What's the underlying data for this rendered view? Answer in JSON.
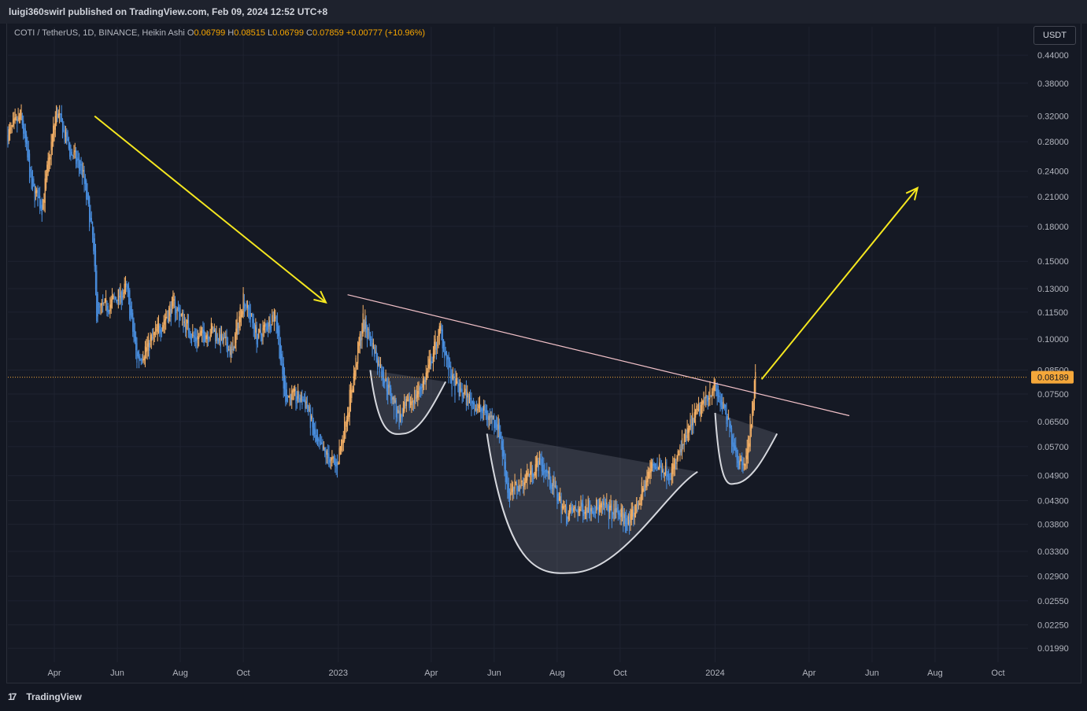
{
  "header": {
    "published": "luigi360swirl published on TradingView.com, Feb 09, 2024 12:52 UTC+8"
  },
  "legend": {
    "symbol": "COTI / TetherUS, 1D, BINANCE, Heikin Ashi",
    "open_label": "O",
    "open": "0.06799",
    "high_label": "H",
    "high": "0.08515",
    "low_label": "L",
    "low": "0.06799",
    "close_label": "C",
    "close": "0.07859",
    "change": "+0.00777 (+10.96%)"
  },
  "currency_button": "USDT",
  "footer": {
    "brand": "TradingView",
    "brand_icon": "tradingview-logo-icon"
  },
  "colors": {
    "up": "#f7b267",
    "down": "#4a90e2",
    "trendline": "#f3c2c9",
    "arrow": "#f5e71f",
    "pattern_stroke": "#d6d8de",
    "price_label_bg": "#f5a73a"
  },
  "chart_data": {
    "type": "candlestick",
    "scale": "log",
    "ylim": [
      0.0185,
      0.47
    ],
    "x_range": [
      "2022-02-15",
      "2024-10-30"
    ],
    "y_ticks": [
      "0.44000",
      "0.38000",
      "0.32000",
      "0.28000",
      "0.24000",
      "0.21000",
      "0.18000",
      "0.15000",
      "0.13000",
      "0.11500",
      "0.10000",
      "0.08500",
      "0.07500",
      "0.06500",
      "0.05700",
      "0.04900",
      "0.04300",
      "0.03800",
      "0.03300",
      "0.02900",
      "0.02550",
      "0.02250",
      "0.01990"
    ],
    "x_ticks": [
      {
        "label": "Apr",
        "date": "2022-04-01"
      },
      {
        "label": "Jun",
        "date": "2022-06-01"
      },
      {
        "label": "Aug",
        "date": "2022-08-01"
      },
      {
        "label": "Oct",
        "date": "2022-10-01"
      },
      {
        "label": "2023",
        "date": "2023-01-01"
      },
      {
        "label": "Apr",
        "date": "2023-04-01"
      },
      {
        "label": "Jun",
        "date": "2023-06-01"
      },
      {
        "label": "Aug",
        "date": "2023-08-01"
      },
      {
        "label": "Oct",
        "date": "2023-10-01"
      },
      {
        "label": "2024",
        "date": "2024-01-01"
      },
      {
        "label": "Apr",
        "date": "2024-04-01"
      },
      {
        "label": "Jun",
        "date": "2024-06-01"
      },
      {
        "label": "Aug",
        "date": "2024-08-01"
      },
      {
        "label": "Oct",
        "date": "2024-10-01"
      }
    ],
    "current_price": "0.08189",
    "price_path": [
      [
        "2022-02-15",
        0.29
      ],
      [
        "2022-02-28",
        0.32
      ],
      [
        "2022-03-10",
        0.22
      ],
      [
        "2022-03-20",
        0.2
      ],
      [
        "2022-04-03",
        0.33
      ],
      [
        "2022-04-15",
        0.27
      ],
      [
        "2022-04-28",
        0.24
      ],
      [
        "2022-05-08",
        0.17
      ],
      [
        "2022-05-12",
        0.115
      ],
      [
        "2022-05-25",
        0.12
      ],
      [
        "2022-06-10",
        0.13
      ],
      [
        "2022-06-20",
        0.09
      ],
      [
        "2022-07-05",
        0.1
      ],
      [
        "2022-07-25",
        0.12
      ],
      [
        "2022-08-15",
        0.1
      ],
      [
        "2022-09-01",
        0.105
      ],
      [
        "2022-09-20",
        0.093
      ],
      [
        "2022-10-01",
        0.125
      ],
      [
        "2022-10-15",
        0.1
      ],
      [
        "2022-11-01",
        0.115
      ],
      [
        "2022-11-10",
        0.075
      ],
      [
        "2022-12-01",
        0.072
      ],
      [
        "2022-12-10",
        0.058
      ],
      [
        "2022-12-30",
        0.051
      ],
      [
        "2023-01-15",
        0.08
      ],
      [
        "2023-01-25",
        0.11
      ],
      [
        "2023-02-10",
        0.087
      ],
      [
        "2023-03-01",
        0.066
      ],
      [
        "2023-03-25",
        0.08
      ],
      [
        "2023-04-10",
        0.105
      ],
      [
        "2023-04-20",
        0.08
      ],
      [
        "2023-05-15",
        0.07
      ],
      [
        "2023-06-05",
        0.064
      ],
      [
        "2023-06-15",
        0.044
      ],
      [
        "2023-07-15",
        0.053
      ],
      [
        "2023-08-10",
        0.04
      ],
      [
        "2023-09-01",
        0.042
      ],
      [
        "2023-10-01",
        0.04
      ],
      [
        "2023-10-10",
        0.038
      ],
      [
        "2023-11-01",
        0.052
      ],
      [
        "2023-11-20",
        0.05
      ],
      [
        "2023-12-10",
        0.065
      ],
      [
        "2023-12-30",
        0.079
      ],
      [
        "2024-01-10",
        0.068
      ],
      [
        "2024-01-25",
        0.052
      ],
      [
        "2024-02-01",
        0.055
      ],
      [
        "2024-02-09",
        0.08189
      ]
    ],
    "annotations": {
      "down_arrow": {
        "from": [
          "2022-05-10",
          0.32
        ],
        "to": [
          "2022-12-20",
          0.121
        ]
      },
      "up_arrow": {
        "from": [
          "2024-02-15",
          0.081
        ],
        "to": [
          "2024-07-15",
          0.22
        ]
      },
      "trendline": {
        "from": [
          "2023-01-10",
          0.126
        ],
        "to": [
          "2024-05-10",
          0.067
        ]
      },
      "resistance_level": 0.08189,
      "cups": [
        {
          "left": [
            "2023-02-01",
            0.085
          ],
          "bottom": [
            "2023-03-05",
            0.061
          ],
          "right": [
            "2023-04-15",
            0.08
          ]
        },
        {
          "left": [
            "2023-05-25",
            0.061
          ],
          "bottom": [
            "2023-08-15",
            0.0295
          ],
          "right": [
            "2023-12-15",
            0.05
          ]
        },
        {
          "left": [
            "2024-01-01",
            0.068
          ],
          "bottom": [
            "2024-01-20",
            0.047
          ],
          "right": [
            "2024-03-01",
            0.061
          ]
        }
      ]
    }
  }
}
